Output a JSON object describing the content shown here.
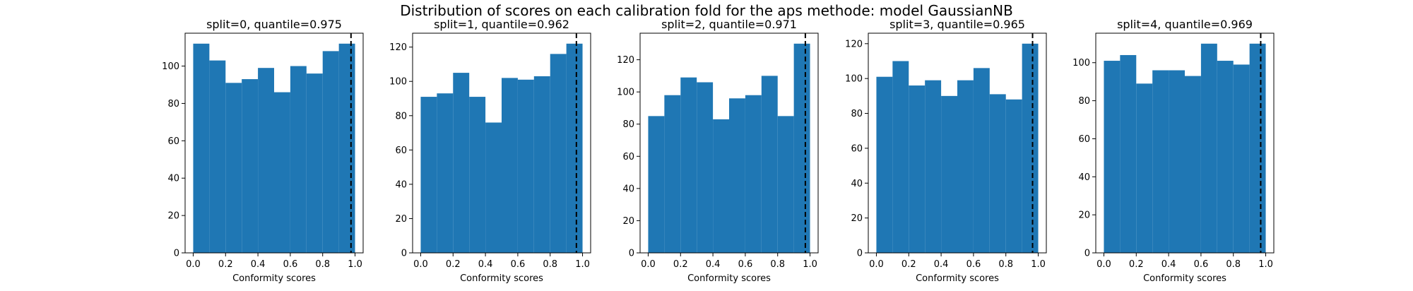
{
  "figure_title": "Distribution of scores on each calibration fold for the aps methode: model GaussianNB",
  "colors": {
    "bar": "#1f77b4",
    "quantile_line": "#000000",
    "axis": "#000000"
  },
  "chart_data": [
    {
      "type": "bar",
      "title": "split=0, quantile=0.975",
      "xlabel": "Conformity scores",
      "ylabel": "",
      "bin_edges": [
        0.0,
        0.1,
        0.2,
        0.3,
        0.4,
        0.5,
        0.6,
        0.7,
        0.8,
        0.9,
        1.0
      ],
      "values": [
        112,
        103,
        91,
        93,
        99,
        86,
        100,
        96,
        108,
        112
      ],
      "quantile": 0.975,
      "xlim": [
        -0.05,
        1.05
      ],
      "ylim": [
        0,
        117.6
      ],
      "xticks": [
        0.0,
        0.2,
        0.4,
        0.6,
        0.8,
        1.0
      ],
      "xtick_labels": [
        "0.0",
        "0.2",
        "0.4",
        "0.6",
        "0.8",
        "1.0"
      ],
      "yticks": [
        0,
        20,
        40,
        60,
        80,
        100
      ],
      "ytick_labels": [
        "0",
        "20",
        "40",
        "60",
        "80",
        "100"
      ],
      "grid": false
    },
    {
      "type": "bar",
      "title": "split=1, quantile=0.962",
      "xlabel": "Conformity scores",
      "ylabel": "",
      "bin_edges": [
        0.0,
        0.1,
        0.2,
        0.3,
        0.4,
        0.5,
        0.6,
        0.7,
        0.8,
        0.9,
        1.0
      ],
      "values": [
        91,
        93,
        105,
        91,
        76,
        102,
        101,
        103,
        116,
        122
      ],
      "quantile": 0.962,
      "xlim": [
        -0.05,
        1.05
      ],
      "ylim": [
        0,
        128.1
      ],
      "xticks": [
        0.0,
        0.2,
        0.4,
        0.6,
        0.8,
        1.0
      ],
      "xtick_labels": [
        "0.0",
        "0.2",
        "0.4",
        "0.6",
        "0.8",
        "1.0"
      ],
      "yticks": [
        0,
        20,
        40,
        60,
        80,
        100,
        120
      ],
      "ytick_labels": [
        "0",
        "20",
        "40",
        "60",
        "80",
        "100",
        "120"
      ],
      "grid": false
    },
    {
      "type": "bar",
      "title": "split=2, quantile=0.971",
      "xlabel": "Conformity scores",
      "ylabel": "",
      "bin_edges": [
        0.0,
        0.1,
        0.2,
        0.3,
        0.4,
        0.5,
        0.6,
        0.7,
        0.8,
        0.9,
        1.0
      ],
      "values": [
        85,
        98,
        109,
        106,
        83,
        96,
        98,
        110,
        85,
        130
      ],
      "quantile": 0.971,
      "xlim": [
        -0.05,
        1.05
      ],
      "ylim": [
        0,
        136.5
      ],
      "xticks": [
        0.0,
        0.2,
        0.4,
        0.6,
        0.8,
        1.0
      ],
      "xtick_labels": [
        "0.0",
        "0.2",
        "0.4",
        "0.6",
        "0.8",
        "1.0"
      ],
      "yticks": [
        0,
        20,
        40,
        60,
        80,
        100,
        120
      ],
      "ytick_labels": [
        "0",
        "20",
        "40",
        "60",
        "80",
        "100",
        "120"
      ],
      "grid": false
    },
    {
      "type": "bar",
      "title": "split=3, quantile=0.965",
      "xlabel": "Conformity scores",
      "ylabel": "",
      "bin_edges": [
        0.0,
        0.1,
        0.2,
        0.3,
        0.4,
        0.5,
        0.6,
        0.7,
        0.8,
        0.9,
        1.0
      ],
      "values": [
        101,
        110,
        96,
        99,
        90,
        99,
        106,
        91,
        88,
        120
      ],
      "quantile": 0.965,
      "xlim": [
        -0.05,
        1.05
      ],
      "ylim": [
        0,
        126.0
      ],
      "xticks": [
        0.0,
        0.2,
        0.4,
        0.6,
        0.8,
        1.0
      ],
      "xtick_labels": [
        "0.0",
        "0.2",
        "0.4",
        "0.6",
        "0.8",
        "1.0"
      ],
      "yticks": [
        0,
        20,
        40,
        60,
        80,
        100,
        120
      ],
      "ytick_labels": [
        "0",
        "20",
        "40",
        "60",
        "80",
        "100",
        "120"
      ],
      "grid": false
    },
    {
      "type": "bar",
      "title": "split=4, quantile=0.969",
      "xlabel": "Conformity scores",
      "ylabel": "",
      "bin_edges": [
        0.0,
        0.1,
        0.2,
        0.3,
        0.4,
        0.5,
        0.6,
        0.7,
        0.8,
        0.9,
        1.0
      ],
      "values": [
        101,
        104,
        89,
        96,
        96,
        93,
        110,
        101,
        99,
        110
      ],
      "quantile": 0.969,
      "xlim": [
        -0.05,
        1.05
      ],
      "ylim": [
        0,
        115.5
      ],
      "xticks": [
        0.0,
        0.2,
        0.4,
        0.6,
        0.8,
        1.0
      ],
      "xtick_labels": [
        "0.0",
        "0.2",
        "0.4",
        "0.6",
        "0.8",
        "1.0"
      ],
      "yticks": [
        0,
        20,
        40,
        60,
        80,
        100
      ],
      "ytick_labels": [
        "0",
        "20",
        "40",
        "60",
        "80",
        "100"
      ],
      "grid": false
    }
  ]
}
